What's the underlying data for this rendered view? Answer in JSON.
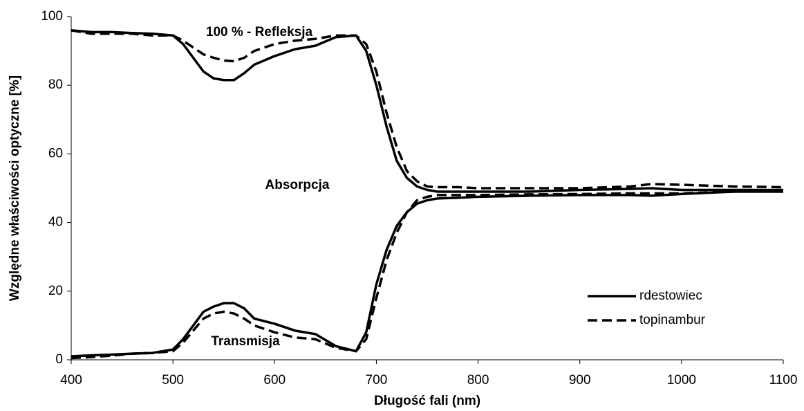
{
  "chart_data": {
    "type": "line",
    "x_label": "Długość fali (nm)",
    "y_label": "Względne właściwości optyczne [%]",
    "annotations": [
      "100 % - Refleksja",
      "Absorpcja",
      "Transmisja"
    ],
    "xlim": [
      400,
      1100
    ],
    "xticks": [
      400,
      500,
      600,
      700,
      800,
      900,
      1000,
      1100
    ],
    "ylim": [
      0,
      100
    ],
    "yticks": [
      0,
      20,
      40,
      60,
      80,
      100
    ],
    "legend": "lower right",
    "x": [
      400,
      420,
      440,
      460,
      480,
      500,
      510,
      520,
      530,
      540,
      550,
      560,
      570,
      580,
      600,
      620,
      640,
      660,
      680,
      690,
      700,
      710,
      720,
      730,
      740,
      750,
      760,
      780,
      800,
      850,
      900,
      950,
      970,
      1000,
      1050,
      1100
    ],
    "series": [
      {
        "name": "rdestowiec",
        "color": "#000000",
        "dash": "solid",
        "reflection": [
          96,
          95.5,
          95.5,
          95.2,
          95,
          94.5,
          92,
          88,
          84,
          82,
          81.5,
          81.5,
          83.5,
          86,
          88.5,
          90.5,
          91.5,
          94,
          94.5,
          90,
          80,
          68,
          58,
          53,
          50.5,
          49.5,
          49,
          49,
          49,
          49,
          49.5,
          49.8,
          50,
          49.5,
          49.5,
          49.5
        ],
        "transmission": [
          1,
          1.3,
          1.5,
          1.8,
          2,
          3,
          6,
          10,
          14,
          15.5,
          16.5,
          16.5,
          15,
          12,
          10.5,
          8.5,
          7.5,
          4,
          2.5,
          8,
          22,
          32,
          39,
          43,
          45.5,
          46.5,
          47,
          47.2,
          47.5,
          47.8,
          48,
          48,
          47.8,
          48.3,
          49,
          49
        ]
      },
      {
        "name": "topinambur",
        "color": "#000000",
        "dash": "dashed",
        "reflection": [
          96,
          95,
          95,
          95,
          94.5,
          94.5,
          93,
          91,
          89,
          88,
          87.2,
          87,
          88,
          90,
          92,
          93,
          93.5,
          94.5,
          94.5,
          92,
          84,
          72,
          62,
          55,
          52,
          50.5,
          50.3,
          50.3,
          50,
          50,
          50,
          50.5,
          51.2,
          51,
          50.5,
          50.3
        ],
        "transmission": [
          0.5,
          0.8,
          1.2,
          1.8,
          2,
          2.5,
          5,
          8.5,
          12,
          13.5,
          14,
          13.5,
          12,
          10,
          8,
          6.5,
          6,
          3.5,
          2.5,
          6,
          18,
          29,
          37,
          43,
          46.5,
          47.5,
          48,
          48,
          48,
          48.2,
          48.3,
          48.5,
          48.5,
          48.5,
          49,
          49.5
        ]
      }
    ]
  }
}
